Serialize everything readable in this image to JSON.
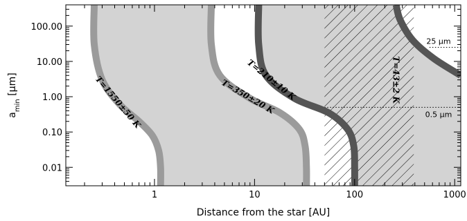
{
  "chart_data": {
    "type": "area",
    "title": "",
    "xlabel": "Distance from the star [AU]",
    "ylabel_main": "a",
    "ylabel_sub": "min",
    "ylabel_unit": " [μm]",
    "xscale": "log",
    "yscale": "log",
    "xlim": [
      0.13,
      1150
    ],
    "ylim": [
      0.003,
      400
    ],
    "x_ticks": [
      {
        "value": 1,
        "label": "1"
      },
      {
        "value": 10,
        "label": "10"
      },
      {
        "value": 100,
        "label": "100"
      },
      {
        "value": 1000,
        "label": "1000"
      }
    ],
    "y_ticks": [
      {
        "value": 0.01,
        "label": "0.01"
      },
      {
        "value": 0.1,
        "label": "0.10"
      },
      {
        "value": 1,
        "label": "1.00"
      },
      {
        "value": 10,
        "label": "10.00"
      },
      {
        "value": 100,
        "label": "100.00"
      }
    ],
    "grid": false,
    "colors": {
      "region_fill": "#d3d3d3",
      "band_light": "#9b9b9b",
      "band_dark": "#555555",
      "hatch": "#000000"
    },
    "hatched_region": {
      "x_start": 50,
      "x_end": 390
    },
    "reference_lines": [
      {
        "y": 25,
        "x_start": 560,
        "label": "25 μm"
      },
      {
        "y": 0.5,
        "x_start": 50,
        "label": "0.5 μm"
      }
    ],
    "series": [
      {
        "label": "T=1550±50 K",
        "color": "band_light",
        "x": [
          0.25,
          0.25,
          0.3,
          0.45,
          0.7,
          0.95,
          1.1,
          1.15,
          1.15
        ],
        "y": [
          400,
          30,
          3,
          0.6,
          0.2,
          0.08,
          0.03,
          0.01,
          0.003
        ]
      },
      {
        "label": "T=350±20 K",
        "color": "band_light",
        "x": [
          3.7,
          3.7,
          4.5,
          9,
          18,
          28,
          32,
          33,
          33
        ],
        "y": [
          400,
          30,
          4,
          0.9,
          0.35,
          0.12,
          0.04,
          0.01,
          0.003
        ]
      },
      {
        "label": "T=210±10 K",
        "color": "band_dark",
        "x": [
          11,
          11,
          13,
          25,
          55,
          85,
          98,
          100,
          100
        ],
        "y": [
          400,
          30,
          4,
          0.9,
          0.35,
          0.12,
          0.04,
          0.01,
          0.003
        ]
      },
      {
        "label": "T=43±2 K",
        "color": "band_dark",
        "x": [
          260,
          285,
          380,
          620,
          1150
        ],
        "y": [
          400,
          150,
          40,
          12,
          4
        ]
      }
    ],
    "band_labels": [
      {
        "series": 0,
        "at_y": 0.7,
        "text": "T=1550±50 K"
      },
      {
        "series": 1,
        "at_y": 1.0,
        "text": "T=350±20 K"
      },
      {
        "series": 2,
        "at_y": 3.0,
        "text": "T=210±10 K"
      },
      {
        "series": 3,
        "at_y": 3.0,
        "text": "T=43±2 K"
      }
    ]
  }
}
